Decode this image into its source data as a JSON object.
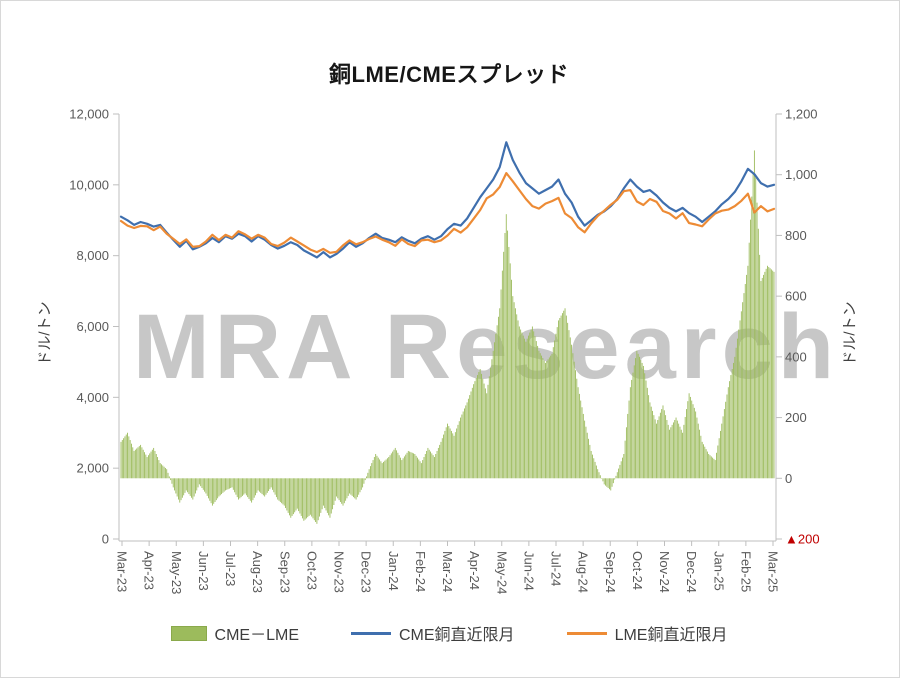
{
  "header": {
    "title": "銅LME/CMEスプレッド"
  },
  "watermark": {
    "text": "MRA Research"
  },
  "chart_data": {
    "type": "combo",
    "title": "銅LME/CMEスプレッド",
    "x_labels": [
      "Mar-23",
      "Apr-23",
      "May-23",
      "Jun-23",
      "Jul-23",
      "Aug-23",
      "Sep-23",
      "Oct-23",
      "Nov-23",
      "Dec-23",
      "Jan-24",
      "Feb-24",
      "Mar-24",
      "Apr-24",
      "May-24",
      "Jun-24",
      "Jul-24",
      "Aug-24",
      "Sep-24",
      "Oct-24",
      "Nov-24",
      "Dec-24",
      "Jan-25",
      "Feb-25",
      "Mar-25"
    ],
    "left_axis": {
      "label": "ドル/トン",
      "min": 0,
      "max": 12000,
      "step": 2000
    },
    "right_axis": {
      "label": "ドル/トン",
      "min": -200,
      "max": 1200,
      "step": 200,
      "negative_prefix": "▲",
      "negative_color": "#C00000"
    },
    "grid": false,
    "legend_position": "bottom",
    "axis_color": "#bfbfbf",
    "tick_label_color": "#595959",
    "series": [
      {
        "name": "CME－LME",
        "type": "bar",
        "axis": "right",
        "color": "#9cbb5c",
        "values": [
          120,
          150,
          90,
          110,
          70,
          100,
          50,
          30,
          -30,
          -80,
          -40,
          -70,
          -20,
          -50,
          -90,
          -60,
          -40,
          -30,
          -70,
          -50,
          -80,
          -40,
          -60,
          -30,
          -70,
          -90,
          -130,
          -100,
          -140,
          -120,
          -150,
          -90,
          -130,
          -60,
          -90,
          -50,
          -70,
          -30,
          30,
          80,
          50,
          70,
          100,
          60,
          90,
          80,
          50,
          100,
          70,
          120,
          180,
          140,
          200,
          250,
          310,
          360,
          280,
          420,
          560,
          870,
          600,
          500,
          450,
          500,
          420,
          380,
          410,
          520,
          560,
          440,
          300,
          190,
          90,
          30,
          -20,
          -40,
          20,
          80,
          300,
          420,
          370,
          250,
          180,
          240,
          160,
          200,
          150,
          280,
          220,
          120,
          80,
          60,
          180,
          300,
          400,
          550,
          700,
          1080,
          650,
          700,
          680
        ]
      },
      {
        "name": "CME銅直近限月",
        "type": "line",
        "axis": "left",
        "color": "#3f6fae",
        "values": [
          9100,
          9000,
          8870,
          8950,
          8900,
          8820,
          8870,
          8650,
          8450,
          8250,
          8420,
          8180,
          8250,
          8350,
          8500,
          8380,
          8550,
          8480,
          8620,
          8550,
          8400,
          8550,
          8450,
          8300,
          8200,
          8280,
          8380,
          8300,
          8150,
          8050,
          7950,
          8100,
          7950,
          8050,
          8200,
          8380,
          8250,
          8350,
          8500,
          8620,
          8500,
          8450,
          8380,
          8520,
          8420,
          8350,
          8480,
          8550,
          8450,
          8550,
          8750,
          8900,
          8850,
          9050,
          9350,
          9650,
          9900,
          10150,
          10500,
          11200,
          10700,
          10350,
          10050,
          9900,
          9750,
          9850,
          9950,
          10150,
          9750,
          9500,
          9100,
          8850,
          9000,
          9150,
          9250,
          9400,
          9600,
          9900,
          10150,
          9950,
          9800,
          9850,
          9700,
          9500,
          9350,
          9250,
          9350,
          9200,
          9100,
          8950,
          9100,
          9250,
          9450,
          9600,
          9800,
          10100,
          10450,
          10300,
          10050,
          9950,
          10000
        ]
      },
      {
        "name": "LME銅直近限月",
        "type": "line",
        "axis": "left",
        "color": "#ed8b35",
        "values": [
          8980,
          8850,
          8780,
          8840,
          8830,
          8720,
          8820,
          8620,
          8480,
          8330,
          8460,
          8250,
          8270,
          8400,
          8590,
          8440,
          8590,
          8510,
          8690,
          8600,
          8480,
          8590,
          8510,
          8330,
          8270,
          8370,
          8510,
          8400,
          8290,
          8170,
          8100,
          8190,
          8080,
          8110,
          8290,
          8430,
          8320,
          8380,
          8470,
          8540,
          8450,
          8380,
          8280,
          8460,
          8330,
          8270,
          8430,
          8450,
          8380,
          8430,
          8570,
          8760,
          8650,
          8800,
          9040,
          9290,
          9620,
          9730,
          9940,
          10330,
          10100,
          9850,
          9600,
          9400,
          9330,
          9470,
          9540,
          9630,
          9190,
          9060,
          8800,
          8660,
          8910,
          9120,
          9270,
          9440,
          9580,
          9820,
          9850,
          9530,
          9430,
          9600,
          9520,
          9260,
          9190,
          9050,
          9200,
          8920,
          8880,
          8830,
          9020,
          9190,
          9270,
          9300,
          9400,
          9550,
          9750,
          9220,
          9400,
          9250,
          9320
        ]
      }
    ]
  }
}
